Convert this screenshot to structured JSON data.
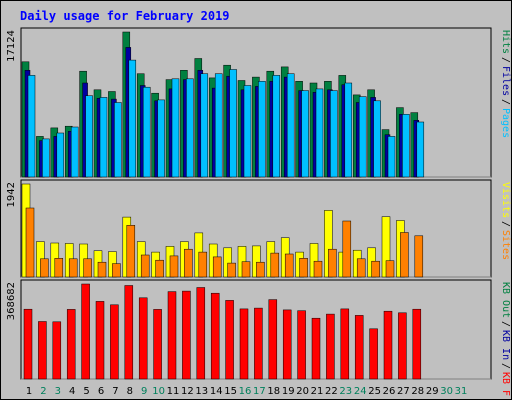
{
  "chart_data": {
    "type": "bar",
    "title": "Daily usage for February 2019",
    "categories": [
      "1",
      "2",
      "3",
      "4",
      "5",
      "6",
      "7",
      "8",
      "9",
      "10",
      "11",
      "12",
      "13",
      "14",
      "15",
      "16",
      "17",
      "18",
      "19",
      "20",
      "21",
      "22",
      "23",
      "24",
      "25",
      "26",
      "27",
      "28",
      "29",
      "30",
      "31"
    ],
    "weekend_days": [
      "2",
      "3",
      "9",
      "10",
      "16",
      "17",
      "23",
      "24",
      "30",
      "31"
    ],
    "panels": [
      {
        "name": "top",
        "ymax": 17124,
        "ymax_label": "17124",
        "axis_labels": [
          {
            "text": "Hits",
            "color": "#008040"
          },
          {
            "text": "Files",
            "color": "#0000a0"
          },
          {
            "text": "Pages",
            "color": "#00c0ff"
          }
        ],
        "series": [
          {
            "name": "Hits",
            "color": "#008040",
            "values": [
              13600,
              4800,
              5800,
              6000,
              12500,
              10300,
              10100,
              17124,
              12200,
              9900,
              11500,
              12600,
              14000,
              11700,
              13200,
              11400,
              11800,
              12500,
              13000,
              11300,
              11100,
              11300,
              12000,
              9700,
              10300,
              5600,
              8200,
              7600,
              null,
              null,
              null
            ]
          },
          {
            "name": "Files",
            "color": "#0000a0",
            "values": [
              12600,
              4300,
              4800,
              5400,
              11100,
              9300,
              9200,
              15300,
              10800,
              9000,
              10400,
              11500,
              12600,
              10500,
              11900,
              10300,
              10700,
              11300,
              11800,
              10200,
              10000,
              10300,
              10900,
              8800,
              9400,
              5000,
              7400,
              6700,
              null,
              null,
              null
            ]
          },
          {
            "name": "Pages",
            "color": "#00c0ff",
            "values": [
              12000,
              4500,
              5200,
              5900,
              9600,
              9400,
              8800,
              13800,
              10600,
              9100,
              11600,
              11600,
              12200,
              12200,
              12700,
              10800,
              11300,
              12000,
              12200,
              10200,
              10400,
              10200,
              11100,
              9500,
              9000,
              4800,
              7400,
              6500,
              null,
              null,
              null
            ]
          }
        ]
      },
      {
        "name": "middle",
        "ymax": 1942,
        "ymax_label": "1942",
        "axis_labels": [
          {
            "text": "Visits",
            "color": "#ffff00"
          },
          {
            "text": "Sites",
            "color": "#ff8000"
          }
        ],
        "series": [
          {
            "name": "Visits",
            "color": "#ffff00",
            "values": [
              1942,
              740,
              710,
              700,
              690,
              550,
              530,
              1250,
              740,
              520,
              640,
              740,
              920,
              690,
              610,
              640,
              650,
              740,
              820,
              520,
              700,
              1390,
              520,
              560,
              610,
              1260,
              1180,
              null,
              null,
              null,
              null
            ]
          },
          {
            "name": "Sites",
            "color": "#ff8000",
            "values": [
              1440,
              380,
              390,
              380,
              380,
              310,
              280,
              1080,
              460,
              350,
              440,
              580,
              520,
              420,
              290,
              320,
              310,
              500,
              480,
              390,
              330,
              580,
              1170,
              380,
              330,
              340,
              930,
              860,
              null,
              null,
              null
            ]
          }
        ]
      },
      {
        "name": "bottom",
        "ymax": 368682,
        "ymax_label": "368682",
        "axis_labels": [
          {
            "text": "KB Out",
            "color": "#008040"
          },
          {
            "text": "KB In",
            "color": "#0000a0"
          },
          {
            "text": "KB F",
            "color": "#ff0000"
          }
        ],
        "series": [
          {
            "name": "KB F",
            "color": "#ff0000",
            "values": [
              271000,
              223000,
              222000,
              270000,
              368682,
              301000,
              288000,
              363000,
              315000,
              270000,
              339000,
              341000,
              355000,
              333000,
              305000,
              272000,
              275000,
              308000,
              268000,
              265000,
              236000,
              252000,
              272000,
              247000,
              195000,
              263000,
              257000,
              271000,
              null,
              null,
              null
            ]
          }
        ]
      }
    ],
    "colors": {
      "background": "#c0c0c0",
      "panel": "#c0c0c0",
      "title": "#0000ff",
      "weekday_label": "#000000",
      "weekend_label": "#00805c"
    }
  }
}
